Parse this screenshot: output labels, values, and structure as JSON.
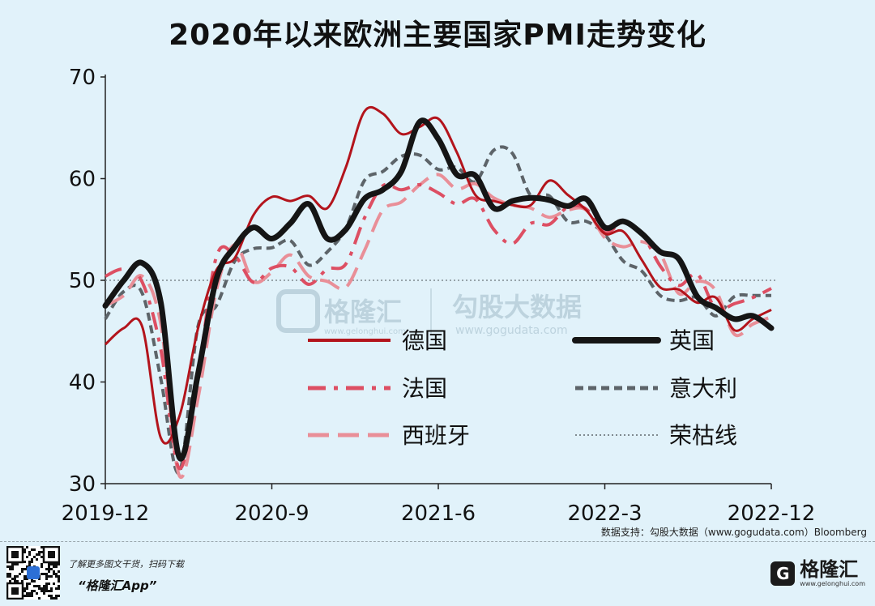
{
  "title": "2020年以来欧洲主要国家PMI走势变化",
  "colors": {
    "germany": "#b3141c",
    "uk": "#151515",
    "france": "#dd4f63",
    "italy": "#5d6469",
    "spain": "#e98f98",
    "boom_bust": "#7f8a90",
    "background": "#e1f2fa",
    "watermark": "#bdd3de"
  },
  "watermark": {
    "brand": "格隆汇",
    "brand_url": "www.gelonghui.com",
    "data_brand": "勾股大数据",
    "data_url": "www.gogudata.com"
  },
  "chart_data": {
    "type": "line",
    "title": "2020年以来欧洲主要国家PMI走势变化",
    "xlabel": "",
    "ylabel": "",
    "ylim": [
      30,
      70
    ],
    "xlim": [
      0,
      36
    ],
    "yticks": [
      30,
      40,
      50,
      60,
      70
    ],
    "ytick_labels": [
      "30",
      "40",
      "50",
      "60",
      "70"
    ],
    "xticks": [
      0,
      9,
      18,
      27,
      36
    ],
    "xtick_labels": [
      "2019-12",
      "2020-9",
      "2021-6",
      "2022-3",
      "2022-12"
    ],
    "reference_line": {
      "name": "荣枯线",
      "value": 50
    },
    "legend_position": "center-right",
    "legend": [
      "德国",
      "英国",
      "法国",
      "意大利",
      "西班牙",
      "荣枯线"
    ],
    "series": [
      {
        "key": "germany",
        "name": "德国",
        "style": "solid",
        "values": [
          43.7,
          45.3,
          45.4,
          34.5,
          36.6,
          45.2,
          51.0,
          52.2,
          56.4,
          58.2,
          57.8,
          58.3,
          57.1,
          61.1,
          66.6,
          66.4,
          64.4,
          65.1,
          65.9,
          62.6,
          58.4,
          57.8,
          57.4,
          57.4,
          59.8,
          58.4,
          56.9,
          54.6,
          54.8,
          52.0,
          49.3,
          49.1,
          47.8,
          48.3,
          45.1,
          46.2,
          47.1
        ]
      },
      {
        "key": "uk",
        "name": "英国",
        "style": "thick",
        "values": [
          47.5,
          50.0,
          51.7,
          47.8,
          32.6,
          40.7,
          50.1,
          53.3,
          55.2,
          54.1,
          55.6,
          57.5,
          54.1,
          55.0,
          58.0,
          58.9,
          60.7,
          65.6,
          63.9,
          60.4,
          60.3,
          57.1,
          57.8,
          58.1,
          57.9,
          57.3,
          58.0,
          55.2,
          55.8,
          54.6,
          52.8,
          52.1,
          48.4,
          47.3,
          46.2,
          46.5,
          45.3
        ]
      },
      {
        "key": "france",
        "name": "法国",
        "style": "dashdot",
        "values": [
          50.4,
          51.1,
          49.8,
          43.2,
          31.5,
          40.6,
          52.3,
          52.4,
          49.8,
          51.2,
          51.3,
          49.6,
          51.1,
          51.6,
          56.1,
          59.3,
          58.9,
          59.4,
          58.6,
          57.5,
          58.0,
          55.0,
          53.6,
          55.6,
          55.5,
          57.2,
          57.0,
          54.7,
          55.7,
          54.6,
          51.4,
          49.5,
          50.6,
          47.2,
          47.7,
          48.3,
          49.2
        ]
      },
      {
        "key": "italy",
        "name": "意大利",
        "style": "dashed",
        "values": [
          46.2,
          48.9,
          48.7,
          40.3,
          31.1,
          45.4,
          47.5,
          51.9,
          53.1,
          53.2,
          53.9,
          51.5,
          52.8,
          55.1,
          59.8,
          60.7,
          62.2,
          62.3,
          60.9,
          61.1,
          59.7,
          62.8,
          62.5,
          58.3,
          58.3,
          55.8,
          55.8,
          54.5,
          51.9,
          50.9,
          48.5,
          48.0,
          48.3,
          46.5,
          48.4,
          48.5,
          48.5
        ]
      },
      {
        "key": "spain",
        "name": "西班牙",
        "style": "longdash",
        "values": [
          47.5,
          48.5,
          50.4,
          45.7,
          30.8,
          38.3,
          49.0,
          53.5,
          49.9,
          50.8,
          52.5,
          50.4,
          49.9,
          49.3,
          52.9,
          56.9,
          57.7,
          59.4,
          60.4,
          59.0,
          59.5,
          58.1,
          57.4,
          57.1,
          56.2,
          56.9,
          56.9,
          54.2,
          53.3,
          53.8,
          52.6,
          48.7,
          49.9,
          49.0,
          44.7,
          45.7,
          46.4
        ]
      }
    ]
  },
  "footer": {
    "source": "数据支持：勾股大数据（www.gogudata.com）Bloomberg",
    "promo": "了解更多图文干货，扫码下载",
    "app": "“格隆汇App”",
    "logo_name": "格隆汇",
    "logo_url": "www.gelonghui.com",
    "logo_glyph": "G"
  }
}
